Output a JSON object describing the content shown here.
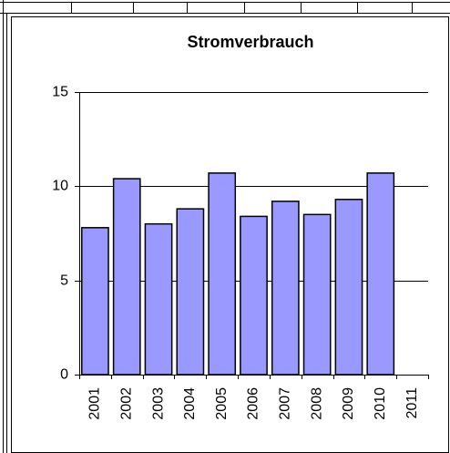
{
  "chart_data": {
    "type": "bar",
    "title": "Stromverbrauch",
    "categories": [
      "2001",
      "2002",
      "2003",
      "2004",
      "2005",
      "2006",
      "2007",
      "2008",
      "2009",
      "2010",
      "2011"
    ],
    "values": [
      7.8,
      10.4,
      8.0,
      8.8,
      10.7,
      8.4,
      9.2,
      8.5,
      9.3,
      10.7,
      null
    ],
    "color": "#9999ff",
    "ylim": [
      0,
      15
    ],
    "yticks": [
      0,
      5,
      10,
      15
    ],
    "grid": true
  }
}
